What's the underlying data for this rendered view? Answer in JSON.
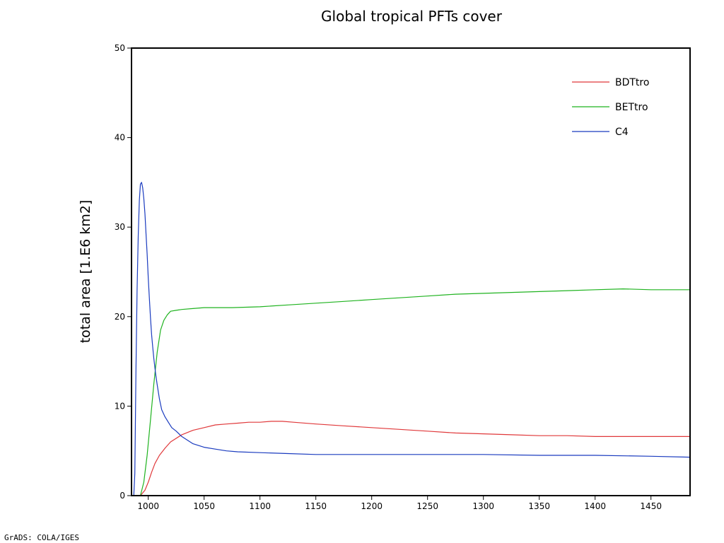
{
  "footer": "GrADS: COLA/IGES",
  "chart_data": {
    "type": "line",
    "title": "Global tropical PFTs cover",
    "xlabel": "",
    "ylabel": "total area [1.E6 km2]",
    "xlim": [
      985,
      1485
    ],
    "ylim": [
      0,
      50
    ],
    "xticks": [
      1000,
      1050,
      1100,
      1150,
      1200,
      1250,
      1300,
      1350,
      1400,
      1450
    ],
    "yticks": [
      0,
      10,
      20,
      30,
      40,
      50
    ],
    "grid": false,
    "legend_position": "top-right",
    "series": [
      {
        "name": "BDTtro",
        "color": "#e0383a",
        "points": [
          [
            985,
            0
          ],
          [
            993,
            0
          ],
          [
            997,
            0.6
          ],
          [
            1000,
            1.5
          ],
          [
            1003,
            2.6
          ],
          [
            1006,
            3.6
          ],
          [
            1010,
            4.5
          ],
          [
            1015,
            5.3
          ],
          [
            1020,
            6.0
          ],
          [
            1030,
            6.8
          ],
          [
            1040,
            7.3
          ],
          [
            1050,
            7.6
          ],
          [
            1060,
            7.9
          ],
          [
            1070,
            8.0
          ],
          [
            1080,
            8.1
          ],
          [
            1090,
            8.2
          ],
          [
            1100,
            8.2
          ],
          [
            1110,
            8.3
          ],
          [
            1120,
            8.3
          ],
          [
            1130,
            8.2
          ],
          [
            1150,
            8.0
          ],
          [
            1175,
            7.8
          ],
          [
            1200,
            7.6
          ],
          [
            1225,
            7.4
          ],
          [
            1250,
            7.2
          ],
          [
            1275,
            7.0
          ],
          [
            1300,
            6.9
          ],
          [
            1325,
            6.8
          ],
          [
            1350,
            6.7
          ],
          [
            1375,
            6.7
          ],
          [
            1400,
            6.6
          ],
          [
            1425,
            6.6
          ],
          [
            1450,
            6.6
          ],
          [
            1485,
            6.6
          ]
        ]
      },
      {
        "name": "BETtro",
        "color": "#1fb31f",
        "points": [
          [
            985,
            0
          ],
          [
            993,
            0
          ],
          [
            996,
            1.5
          ],
          [
            999,
            4.5
          ],
          [
            1002,
            8.5
          ],
          [
            1005,
            12.5
          ],
          [
            1008,
            16
          ],
          [
            1011,
            18.5
          ],
          [
            1014,
            19.6
          ],
          [
            1017,
            20.2
          ],
          [
            1020,
            20.6
          ],
          [
            1025,
            20.7
          ],
          [
            1030,
            20.8
          ],
          [
            1040,
            20.9
          ],
          [
            1050,
            21.0
          ],
          [
            1075,
            21.0
          ],
          [
            1100,
            21.1
          ],
          [
            1125,
            21.3
          ],
          [
            1150,
            21.5
          ],
          [
            1175,
            21.7
          ],
          [
            1200,
            21.9
          ],
          [
            1225,
            22.1
          ],
          [
            1250,
            22.3
          ],
          [
            1275,
            22.5
          ],
          [
            1300,
            22.6
          ],
          [
            1325,
            22.7
          ],
          [
            1350,
            22.8
          ],
          [
            1375,
            22.9
          ],
          [
            1400,
            23.0
          ],
          [
            1425,
            23.1
          ],
          [
            1450,
            23.0
          ],
          [
            1485,
            23.0
          ]
        ]
      },
      {
        "name": "C4",
        "color": "#1a3bbf",
        "points": [
          [
            985,
            0
          ],
          [
            987,
            0
          ],
          [
            988,
            2.5
          ],
          [
            989,
            14
          ],
          [
            990,
            23
          ],
          [
            991,
            29
          ],
          [
            992,
            33
          ],
          [
            993,
            34.8
          ],
          [
            994,
            35.0
          ],
          [
            995,
            34.4
          ],
          [
            996,
            33.2
          ],
          [
            997,
            31.5
          ],
          [
            998,
            29.3
          ],
          [
            999,
            27
          ],
          [
            1000,
            24.3
          ],
          [
            1001,
            22
          ],
          [
            1002,
            19.8
          ],
          [
            1003,
            18
          ],
          [
            1004,
            16.6
          ],
          [
            1005,
            15.3
          ],
          [
            1006,
            14.2
          ],
          [
            1007,
            13.2
          ],
          [
            1008,
            12.4
          ],
          [
            1009,
            11.6
          ],
          [
            1010,
            10.8
          ],
          [
            1012,
            9.6
          ],
          [
            1015,
            8.8
          ],
          [
            1018,
            8.2
          ],
          [
            1021,
            7.6
          ],
          [
            1025,
            7.2
          ],
          [
            1030,
            6.6
          ],
          [
            1035,
            6.2
          ],
          [
            1040,
            5.8
          ],
          [
            1045,
            5.6
          ],
          [
            1050,
            5.4
          ],
          [
            1060,
            5.2
          ],
          [
            1070,
            5.0
          ],
          [
            1080,
            4.9
          ],
          [
            1100,
            4.8
          ],
          [
            1125,
            4.7
          ],
          [
            1150,
            4.6
          ],
          [
            1175,
            4.6
          ],
          [
            1200,
            4.6
          ],
          [
            1250,
            4.6
          ],
          [
            1300,
            4.6
          ],
          [
            1350,
            4.5
          ],
          [
            1400,
            4.5
          ],
          [
            1450,
            4.4
          ],
          [
            1485,
            4.3
          ]
        ]
      }
    ]
  }
}
